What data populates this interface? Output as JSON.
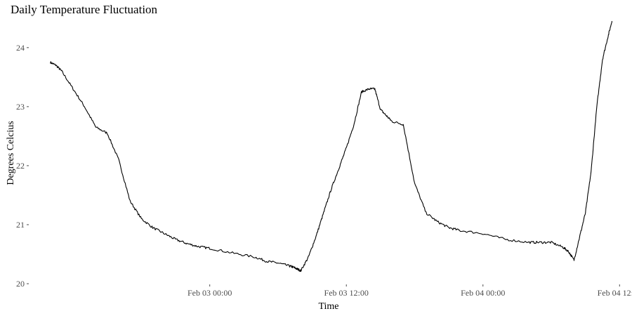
{
  "chart_data": {
    "type": "line",
    "title": "Daily Temperature Fluctuation",
    "xlabel": "Time",
    "ylabel": "Degrees Celcius",
    "grid": false,
    "legend": "none",
    "line_color": "#000000",
    "xlim": [
      "2023-02-02T08:10",
      "2023-02-04T12:10"
    ],
    "ylim": [
      20,
      24.45
    ],
    "x_ticks": [
      {
        "value": "2023-02-03T00:00",
        "label": "Feb 03 00:00"
      },
      {
        "value": "2023-02-03T12:00",
        "label": "Feb 03 12:00"
      },
      {
        "value": "2023-02-04T00:00",
        "label": "Feb 04 00:00"
      },
      {
        "value": "2023-02-04T12:00",
        "label": "Feb 04 12:00"
      }
    ],
    "y_ticks": [
      20,
      21,
      22,
      23,
      24
    ],
    "series": [
      {
        "x": [
          "2023-02-02T10:00",
          "2023-02-02T10:30",
          "2023-02-02T11:00",
          "2023-02-02T12:00",
          "2023-02-02T13:00",
          "2023-02-02T14:00",
          "2023-02-02T15:00",
          "2023-02-02T16:00",
          "2023-02-02T17:00",
          "2023-02-02T18:00",
          "2023-02-02T19:00",
          "2023-02-02T20:00",
          "2023-02-02T21:00",
          "2023-02-02T22:00",
          "2023-02-02T23:00",
          "2023-02-03T00:00",
          "2023-02-03T02:00",
          "2023-02-03T04:00",
          "2023-02-03T05:00",
          "2023-02-03T06:00",
          "2023-02-03T07:00",
          "2023-02-03T07:20",
          "2023-02-03T07:40",
          "2023-02-03T08:00",
          "2023-02-03T08:40",
          "2023-02-03T09:20",
          "2023-02-03T10:00",
          "2023-02-03T10:40",
          "2023-02-03T11:20",
          "2023-02-03T12:00",
          "2023-02-03T12:40",
          "2023-02-03T13:20",
          "2023-02-03T14:00",
          "2023-02-03T14:30",
          "2023-02-03T15:00",
          "2023-02-03T15:30",
          "2023-02-03T16:00",
          "2023-02-03T17:00",
          "2023-02-03T18:00",
          "2023-02-03T19:00",
          "2023-02-03T20:00",
          "2023-02-03T21:00",
          "2023-02-03T22:00",
          "2023-02-04T00:00",
          "2023-02-04T02:00",
          "2023-02-04T04:00",
          "2023-02-04T05:00",
          "2023-02-04T06:00",
          "2023-02-04T07:00",
          "2023-02-04T07:30",
          "2023-02-04T08:00",
          "2023-02-04T08:30",
          "2023-02-04T09:00",
          "2023-02-04T09:30",
          "2023-02-04T10:00",
          "2023-02-04T10:30",
          "2023-02-04T11:00",
          "2023-02-04T11:20"
        ],
        "y": [
          23.75,
          23.7,
          23.6,
          23.3,
          23.0,
          22.65,
          22.55,
          22.1,
          21.4,
          21.1,
          20.95,
          20.85,
          20.75,
          20.68,
          20.63,
          20.6,
          20.52,
          20.45,
          20.38,
          20.35,
          20.3,
          20.28,
          20.25,
          20.22,
          20.45,
          20.8,
          21.2,
          21.6,
          21.95,
          22.3,
          22.7,
          23.25,
          23.3,
          23.3,
          22.95,
          22.85,
          22.75,
          22.7,
          21.7,
          21.2,
          21.05,
          20.95,
          20.9,
          20.85,
          20.75,
          20.7,
          20.7,
          20.7,
          20.62,
          20.55,
          20.4,
          20.8,
          21.2,
          21.9,
          23.0,
          23.8,
          24.2,
          24.45
        ]
      }
    ]
  }
}
